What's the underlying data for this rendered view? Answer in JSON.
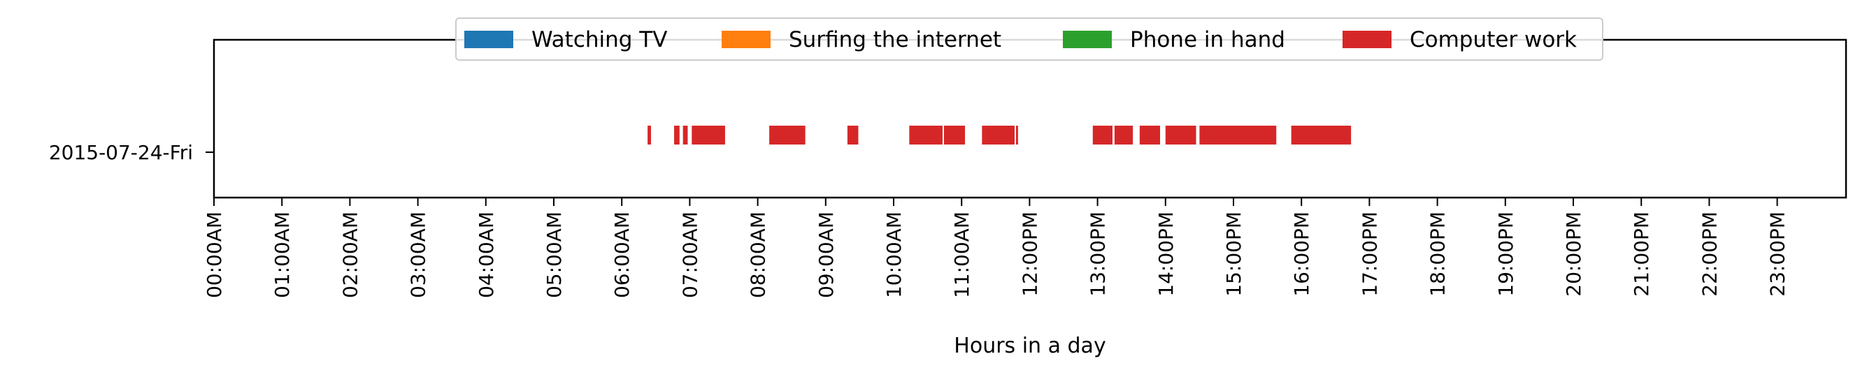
{
  "chart_data": {
    "type": "timeline",
    "title": "",
    "xlabel": "Hours in a day",
    "ylabel": "",
    "xlim": [
      0,
      24
    ],
    "x_tick_labels": [
      "00:00AM",
      "01:00AM",
      "02:00AM",
      "03:00AM",
      "04:00AM",
      "05:00AM",
      "06:00AM",
      "07:00AM",
      "08:00AM",
      "09:00AM",
      "10:00AM",
      "11:00AM",
      "12:00PM",
      "13:00PM",
      "14:00PM",
      "15:00PM",
      "16:00PM",
      "17:00PM",
      "18:00PM",
      "19:00PM",
      "20:00PM",
      "21:00PM",
      "22:00PM",
      "23:00PM"
    ],
    "categories": [
      "2015-07-24-Fri"
    ],
    "legend_position": "top-center",
    "grid": false,
    "series": [
      {
        "name": "Watching TV",
        "color": "#1f77b4",
        "intervals": []
      },
      {
        "name": "Surfing the internet",
        "color": "#ff7f0e",
        "intervals": []
      },
      {
        "name": "Phone in hand",
        "color": "#2ca02c",
        "intervals": []
      },
      {
        "name": "Computer work",
        "color": "#d62728",
        "intervals": [
          [
            6.38,
            6.43
          ],
          [
            6.77,
            6.85
          ],
          [
            6.9,
            6.97
          ],
          [
            7.03,
            7.52
          ],
          [
            8.17,
            8.7
          ],
          [
            9.32,
            9.48
          ],
          [
            10.23,
            10.72
          ],
          [
            10.74,
            11.05
          ],
          [
            11.3,
            11.78
          ],
          [
            11.8,
            11.83
          ],
          [
            12.93,
            13.22
          ],
          [
            13.25,
            13.52
          ],
          [
            13.62,
            13.92
          ],
          [
            14.0,
            14.45
          ],
          [
            14.5,
            15.63
          ],
          [
            15.85,
            16.73
          ]
        ]
      }
    ]
  }
}
